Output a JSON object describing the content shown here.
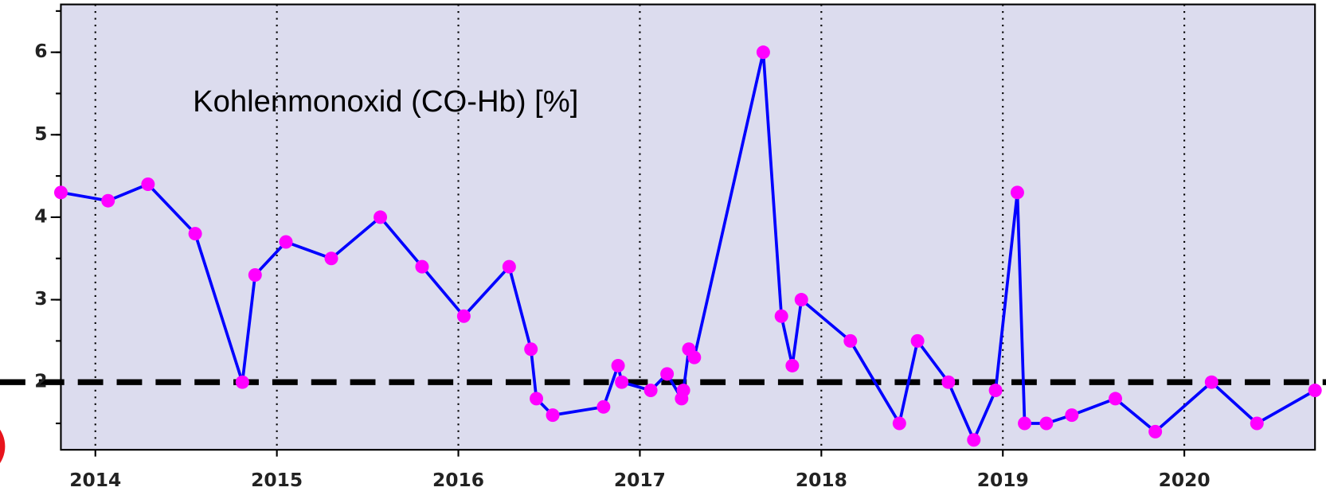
{
  "chart_data": {
    "type": "line",
    "annotation": "Kohlenmonoxid (CO-Hb) [%]",
    "x": [
      2013.81,
      2014.07,
      2014.29,
      2014.55,
      2014.81,
      2014.88,
      2015.05,
      2015.3,
      2015.57,
      2015.8,
      2016.03,
      2016.28,
      2016.4,
      2016.43,
      2016.52,
      2016.8,
      2016.88,
      2016.9,
      2017.06,
      2017.15,
      2017.23,
      2017.24,
      2017.27,
      2017.3,
      2017.68,
      2017.78,
      2017.84,
      2017.89,
      2018.16,
      2018.43,
      2018.53,
      2018.7,
      2018.84,
      2018.96,
      2019.08,
      2019.12,
      2019.24,
      2019.38,
      2019.62,
      2019.84,
      2020.15,
      2020.4,
      2020.72
    ],
    "series": [
      {
        "color": "#0000ff",
        "marker_color": "#ff00ff",
        "values": [
          4.3,
          4.2,
          4.4,
          3.8,
          2.0,
          3.3,
          3.7,
          3.5,
          4.0,
          3.4,
          2.8,
          3.4,
          2.4,
          1.8,
          1.6,
          1.7,
          2.2,
          2.0,
          1.9,
          2.1,
          1.8,
          1.9,
          2.4,
          2.3,
          6.0,
          2.8,
          2.2,
          3.0,
          2.5,
          1.5,
          2.5,
          2.0,
          1.3,
          1.9,
          4.3,
          1.5,
          1.5,
          1.6,
          1.8,
          1.4,
          2.0,
          1.5,
          1.9
        ]
      }
    ],
    "xlim": [
      2013.81,
      2020.72
    ],
    "xticks": [
      2014,
      2015,
      2016,
      2017,
      2018,
      2019,
      2020
    ],
    "ylim": [
      1.18,
      6.58
    ],
    "yticks": [
      2,
      3,
      4,
      5,
      6
    ],
    "reference_line": 2,
    "background": "#dcdcee",
    "grid": true
  }
}
